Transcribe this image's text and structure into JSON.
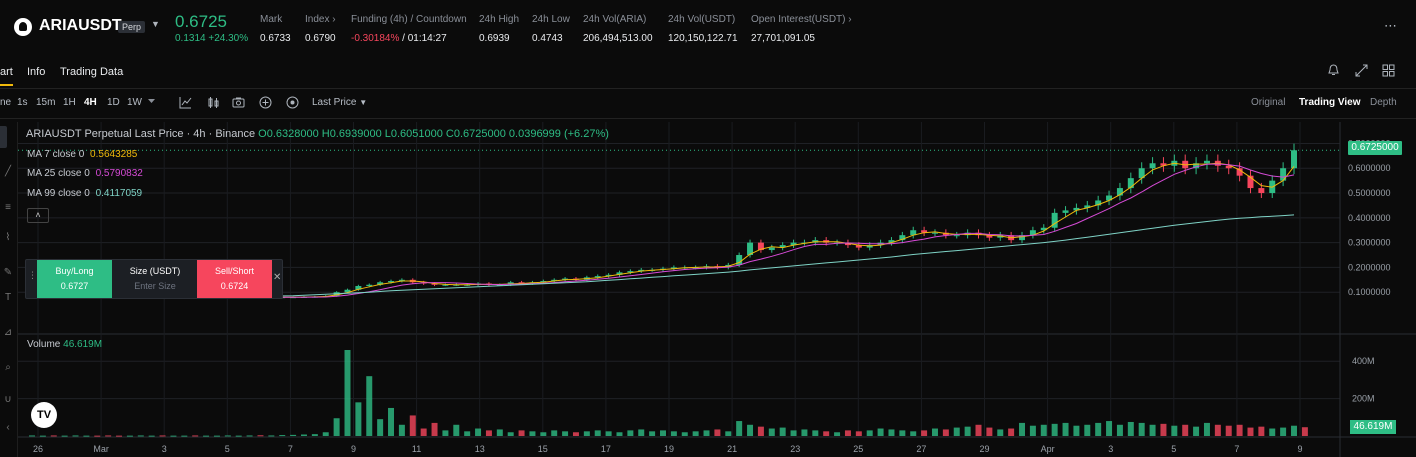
{
  "header": {
    "symbol": "ARIAUSDT",
    "contract_badge": "Perp",
    "last_price": "0.6725",
    "change": "0.1314 +24.30%",
    "stats": [
      {
        "label": "Mark",
        "value": "0.6733"
      },
      {
        "label": "Index",
        "value": "0.6790"
      },
      {
        "label": "Funding (4h) / Countdown",
        "value_rate": "-0.30184%",
        "value_countdown": "/ 01:14:27"
      },
      {
        "label": "24h High",
        "value": "0.6939"
      },
      {
        "label": "24h Low",
        "value": "0.4743"
      },
      {
        "label": "24h Vol(ARIA)",
        "value": "206,494,513.00"
      },
      {
        "label": "24h Vol(USDT)",
        "value": "120,150,122.71"
      },
      {
        "label": "Open Interest(USDT)",
        "value": "27,701,091.05"
      }
    ],
    "more_icon": "ellipsis-icon"
  },
  "tabs": {
    "items": [
      "art",
      "Info",
      "Trading Data"
    ],
    "active": "art"
  },
  "toolbar": {
    "partial_left": "ne",
    "intervals": [
      "1s",
      "15m",
      "1H",
      "4H",
      "1D",
      "1W"
    ],
    "active_interval": "4H",
    "price_type": "Last Price",
    "views": [
      "Original",
      "Trading View",
      "Depth"
    ],
    "active_view": "Trading View"
  },
  "chart_legend": {
    "title": "ARIAUSDT Perpetual Last Price · 4h · Binance",
    "ohlc": "O0.6328000  H0.6939000  L0.6051000  C0.6725000  0.0396999 (+6.27%)",
    "ma7_label": "MA 7 close 0",
    "ma7_value": "0.5643285",
    "ma25_label": "MA 25 close 0",
    "ma25_value": "0.5790832",
    "ma99_label": "MA 99 close 0",
    "ma99_value": "0.4117059",
    "volume_label": "Volume",
    "volume_value": "46.619M"
  },
  "order_panel": {
    "buy_label": "Buy/Long",
    "buy_price": "0.6727",
    "size_label": "Size (USDT)",
    "size_placeholder": "Enter Size",
    "sell_label": "Sell/Short",
    "sell_price": "0.6724"
  },
  "colors": {
    "up": "#2ebd85",
    "down": "#f6465d",
    "ma7": "#f0b90b",
    "ma25": "#d64bd6",
    "ma99": "#7fd3c6",
    "accent": "#f0b90b"
  },
  "chart_data": {
    "type": "candlestick",
    "price_axis_ticks": [
      "0.7000000",
      "0.6000000",
      "0.5000000",
      "0.4000000",
      "0.3000000",
      "0.2000000",
      "0.1000000"
    ],
    "price_axis_values": [
      0.7,
      0.6,
      0.5,
      0.4,
      0.3,
      0.2,
      0.1
    ],
    "last_price_label": "0.6725000",
    "volume_axis_ticks": [
      "400M",
      "200M"
    ],
    "volume_axis_values": [
      400,
      200
    ],
    "last_volume_label": "46.619M",
    "x_ticks": [
      "26",
      "Mar",
      "3",
      "5",
      "7",
      "9",
      "11",
      "13",
      "15",
      "17",
      "19",
      "21",
      "23",
      "25",
      "27",
      "29",
      "Apr",
      "3",
      "5",
      "7",
      "9"
    ],
    "price_range": [
      0.0,
      0.73
    ],
    "volume_range": [
      0,
      460
    ],
    "close_series": [
      0.078,
      0.079,
      0.078,
      0.078,
      0.079,
      0.08,
      0.079,
      0.078,
      0.077,
      0.078,
      0.078,
      0.079,
      0.078,
      0.078,
      0.079,
      0.078,
      0.078,
      0.079,
      0.079,
      0.08,
      0.08,
      0.079,
      0.079,
      0.08,
      0.08,
      0.081,
      0.082,
      0.085,
      0.1,
      0.11,
      0.125,
      0.13,
      0.14,
      0.145,
      0.15,
      0.14,
      0.135,
      0.13,
      0.13,
      0.13,
      0.13,
      0.135,
      0.13,
      0.13,
      0.14,
      0.135,
      0.14,
      0.145,
      0.15,
      0.155,
      0.15,
      0.16,
      0.165,
      0.17,
      0.18,
      0.185,
      0.19,
      0.19,
      0.195,
      0.2,
      0.2,
      0.2,
      0.205,
      0.2,
      0.21,
      0.25,
      0.3,
      0.27,
      0.28,
      0.29,
      0.3,
      0.3,
      0.31,
      0.3,
      0.3,
      0.29,
      0.28,
      0.29,
      0.3,
      0.31,
      0.33,
      0.35,
      0.34,
      0.34,
      0.33,
      0.33,
      0.34,
      0.33,
      0.32,
      0.33,
      0.31,
      0.33,
      0.35,
      0.36,
      0.42,
      0.43,
      0.44,
      0.45,
      0.47,
      0.49,
      0.52,
      0.56,
      0.6,
      0.62,
      0.61,
      0.63,
      0.6,
      0.62,
      0.63,
      0.61,
      0.6,
      0.57,
      0.52,
      0.5,
      0.55,
      0.6,
      0.6725
    ],
    "ma99_series": [
      0.08,
      0.08,
      0.08,
      0.08,
      0.08,
      0.08,
      0.08,
      0.08,
      0.08,
      0.08,
      0.08,
      0.08,
      0.08,
      0.08,
      0.08,
      0.08,
      0.081,
      0.081,
      0.082,
      0.082,
      0.083,
      0.083,
      0.084,
      0.085,
      0.086,
      0.088,
      0.09,
      0.092,
      0.094,
      0.096,
      0.098,
      0.1,
      0.103,
      0.106,
      0.108,
      0.11,
      0.112,
      0.114,
      0.116,
      0.118,
      0.12,
      0.122,
      0.124,
      0.126,
      0.128,
      0.13,
      0.132,
      0.134,
      0.136,
      0.138,
      0.14,
      0.142,
      0.145,
      0.148,
      0.151,
      0.154,
      0.157,
      0.16,
      0.163,
      0.166,
      0.169,
      0.172,
      0.175,
      0.178,
      0.181,
      0.185,
      0.19,
      0.194,
      0.198,
      0.202,
      0.206,
      0.21,
      0.214,
      0.218,
      0.222,
      0.226,
      0.23,
      0.234,
      0.238,
      0.242,
      0.247,
      0.252,
      0.256,
      0.26,
      0.264,
      0.268,
      0.272,
      0.276,
      0.28,
      0.284,
      0.288,
      0.292,
      0.296,
      0.3,
      0.305,
      0.31,
      0.316,
      0.322,
      0.328,
      0.334,
      0.34,
      0.346,
      0.352,
      0.358,
      0.364,
      0.37,
      0.375,
      0.38,
      0.385,
      0.39,
      0.395,
      0.398,
      0.401,
      0.404,
      0.406,
      0.409,
      0.4117
    ],
    "volume_series": [
      3,
      2,
      3,
      2,
      3,
      2,
      2,
      3,
      2,
      2,
      3,
      2,
      3,
      2,
      2,
      3,
      2,
      2,
      3,
      2,
      3,
      4,
      3,
      5,
      6,
      8,
      10,
      20,
      95,
      460,
      180,
      320,
      90,
      150,
      60,
      110,
      40,
      70,
      30,
      60,
      25,
      40,
      30,
      35,
      20,
      30,
      25,
      20,
      30,
      25,
      20,
      25,
      30,
      25,
      20,
      30,
      35,
      25,
      30,
      25,
      20,
      25,
      30,
      35,
      25,
      80,
      60,
      50,
      40,
      45,
      30,
      35,
      30,
      25,
      20,
      30,
      25,
      30,
      40,
      35,
      30,
      25,
      30,
      40,
      35,
      45,
      50,
      60,
      45,
      35,
      40,
      70,
      55,
      60,
      65,
      70,
      55,
      60,
      70,
      80,
      60,
      75,
      70,
      60,
      65,
      55,
      60,
      50,
      70,
      60,
      55,
      60,
      45,
      50,
      40,
      45,
      55,
      47
    ]
  }
}
